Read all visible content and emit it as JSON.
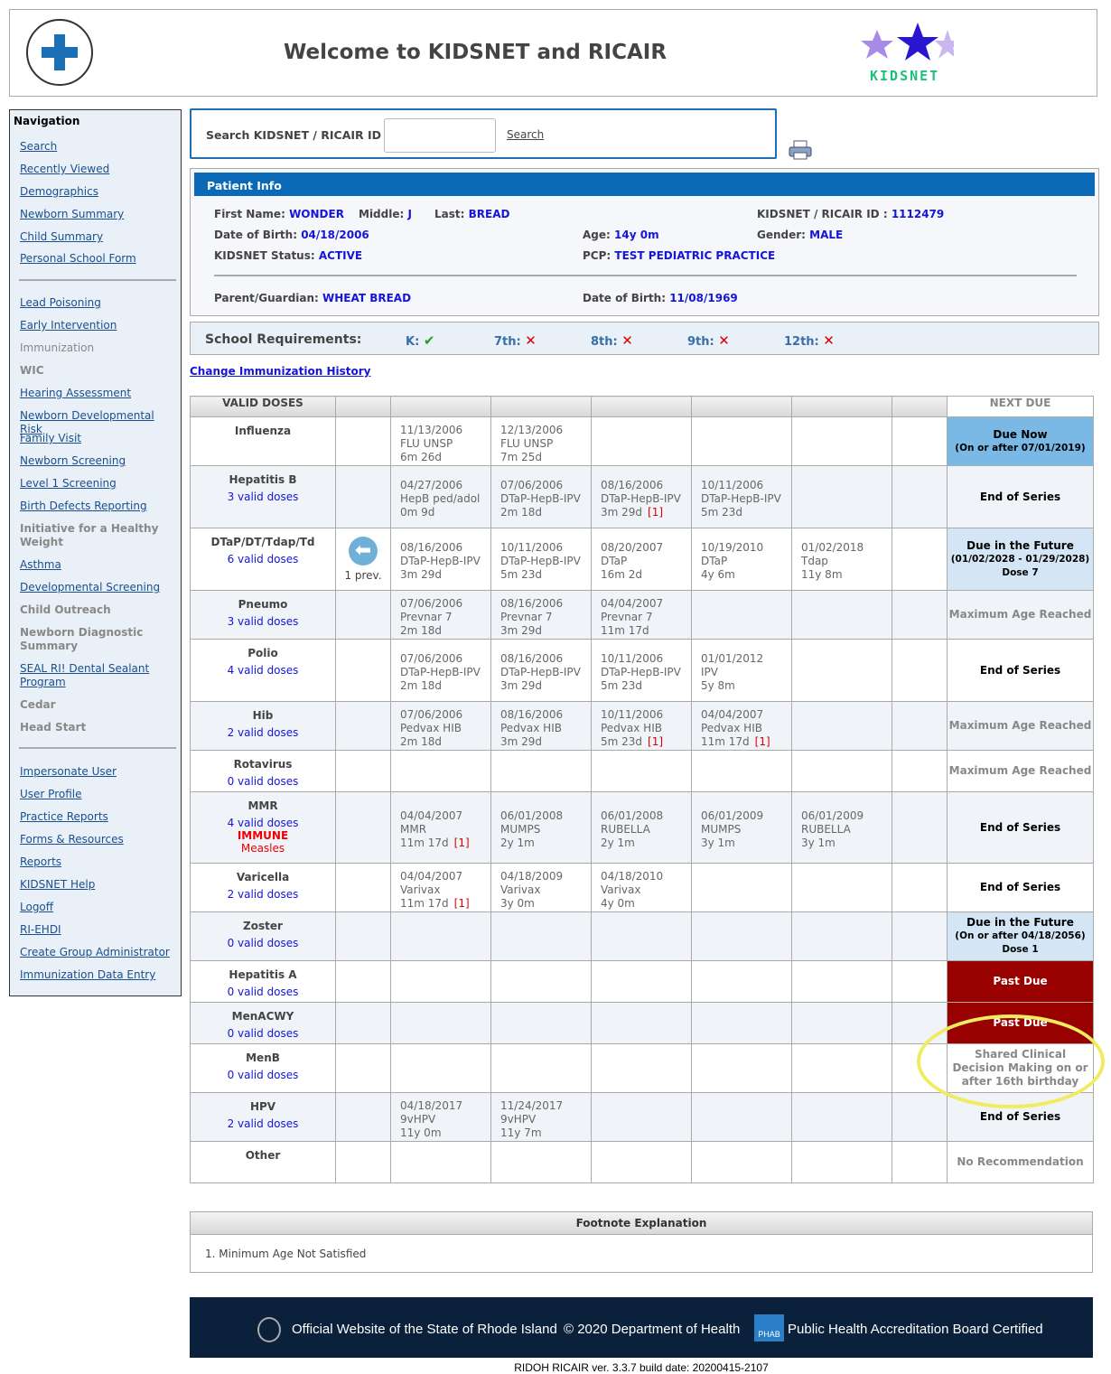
{
  "header": {
    "title": "Welcome to KIDSNET and RICAIR",
    "logo_left": "Rhode Island Department of Health",
    "logo_right": "KIDSNET"
  },
  "nav": {
    "title": "Navigation",
    "items": [
      {
        "label": "Search",
        "type": "link"
      },
      {
        "label": "Recently Viewed",
        "type": "link"
      },
      {
        "label": "Demographics",
        "type": "link"
      },
      {
        "label": "Newborn Summary",
        "type": "link"
      },
      {
        "label": "Child Summary",
        "type": "link"
      },
      {
        "label": "Personal School Form",
        "type": "link"
      },
      {
        "label": "Lead Poisoning",
        "type": "link"
      },
      {
        "label": "Early Intervention",
        "type": "link"
      },
      {
        "label": "Immunization",
        "type": "plain"
      },
      {
        "label": "WIC",
        "type": "bold"
      },
      {
        "label": "Hearing Assessment",
        "type": "link"
      },
      {
        "label": "Newborn Developmental Risk",
        "type": "link"
      },
      {
        "label": "Family Visit",
        "type": "link"
      },
      {
        "label": "Newborn Screening",
        "type": "link"
      },
      {
        "label": "Level 1 Screening",
        "type": "link"
      },
      {
        "label": "Birth Defects Reporting",
        "type": "link"
      },
      {
        "label": "Initiative for a Healthy Weight",
        "type": "bold"
      },
      {
        "label": "Asthma",
        "type": "link"
      },
      {
        "label": "Developmental Screening",
        "type": "link"
      },
      {
        "label": "Child Outreach",
        "type": "bold"
      },
      {
        "label": "Newborn Diagnostic Summary",
        "type": "bold"
      },
      {
        "label": "SEAL RI! Dental Sealant Program",
        "type": "link"
      },
      {
        "label": "Cedar",
        "type": "bold"
      },
      {
        "label": "Head Start",
        "type": "bold"
      },
      {
        "label": "Impersonate User",
        "type": "link"
      },
      {
        "label": "User Profile",
        "type": "link"
      },
      {
        "label": "Practice Reports",
        "type": "link"
      },
      {
        "label": "Forms & Resources",
        "type": "link"
      },
      {
        "label": "Reports",
        "type": "link"
      },
      {
        "label": "KIDSNET Help",
        "type": "link"
      },
      {
        "label": "Logoff",
        "type": "link"
      },
      {
        "label": "RI-EHDI",
        "type": "link"
      },
      {
        "label": "Create Group Administrator",
        "type": "link"
      },
      {
        "label": "Immunization Data Entry",
        "type": "link"
      }
    ]
  },
  "search": {
    "label": "Search KIDSNET / RICAIR ID :",
    "value": "",
    "button": "Search"
  },
  "patient": {
    "title": "Patient Info",
    "first_label": "First Name:",
    "first": "WONDER",
    "middle_label": "Middle:",
    "middle": "J",
    "last_label": "Last:",
    "last": "BREAD",
    "id_label": "KIDSNET / RICAIR ID :",
    "id": "1112479",
    "dob_label": "Date of Birth:",
    "dob": "04/18/2006",
    "age_label": "Age:",
    "age": "14y 0m",
    "gender_label": "Gender:",
    "gender": "MALE",
    "status_label": "KIDSNET Status:",
    "status": "ACTIVE",
    "pcp_label": "PCP:",
    "pcp": "TEST PEDIATRIC PRACTICE",
    "guardian_label": "Parent/Guardian:",
    "guardian": "WHEAT BREAD",
    "gdob_label": "Date of Birth:",
    "gdob": "11/08/1969"
  },
  "school": {
    "title": "School Requirements:",
    "grades": [
      {
        "label": "K:",
        "met": true
      },
      {
        "label": "7th:",
        "met": false
      },
      {
        "label": "8th:",
        "met": false
      },
      {
        "label": "9th:",
        "met": false
      },
      {
        "label": "12th:",
        "met": false
      }
    ]
  },
  "change_link": "Change Immunization History",
  "table": {
    "header_valid": "VALID DOSES",
    "header_next": "NEXT DUE",
    "prev_label": "1 prev.",
    "rows": [
      {
        "name": "Influenza",
        "valid": "",
        "doses": [
          {
            "date": "11/13/2006",
            "vaccine": "FLU UNSP",
            "age": "6m 26d"
          },
          {
            "date": "12/13/2006",
            "vaccine": "FLU UNSP",
            "age": "7m 25d"
          }
        ],
        "next": {
          "label": "Due Now",
          "sub": "(On or after 07/01/2019)",
          "style": "now"
        }
      },
      {
        "name": "Hepatitis B",
        "valid": "3 valid doses",
        "doses": [
          {
            "date": "04/27/2006",
            "vaccine": "HepB ped/adol",
            "age": "0m 9d"
          },
          {
            "date": "07/06/2006",
            "vaccine": "DTaP-HepB-IPV",
            "age": "2m 18d"
          },
          {
            "date": "08/16/2006",
            "vaccine": "DTaP-HepB-IPV",
            "age": "3m 29d",
            "note": "[1]"
          },
          {
            "date": "10/11/2006",
            "vaccine": "DTaP-HepB-IPV",
            "age": "5m 23d"
          }
        ],
        "next": {
          "label": "End of Series",
          "style": "end"
        }
      },
      {
        "name": "DTaP/DT/Tdap/Td",
        "valid": "6 valid doses",
        "prev": true,
        "doses": [
          {
            "date": "08/16/2006",
            "vaccine": "DTaP-HepB-IPV",
            "age": "3m 29d"
          },
          {
            "date": "10/11/2006",
            "vaccine": "DTaP-HepB-IPV",
            "age": "5m 23d"
          },
          {
            "date": "08/20/2007",
            "vaccine": "DTaP",
            "age": "16m 2d"
          },
          {
            "date": "10/19/2010",
            "vaccine": "DTaP",
            "age": "4y 6m"
          },
          {
            "date": "01/02/2018",
            "vaccine": "Tdap",
            "age": "11y 8m"
          }
        ],
        "next": {
          "label": "Due in the Future",
          "sub": "(01/02/2028 - 01/29/2028)",
          "dose": "Dose 7",
          "style": "future"
        }
      },
      {
        "name": "Pneumo",
        "valid": "3 valid doses",
        "doses": [
          {
            "date": "07/06/2006",
            "vaccine": "Prevnar 7",
            "age": "2m 18d"
          },
          {
            "date": "08/16/2006",
            "vaccine": "Prevnar 7",
            "age": "3m 29d"
          },
          {
            "date": "04/04/2007",
            "vaccine": "Prevnar 7",
            "age": "11m 17d"
          }
        ],
        "next": {
          "label": "Maximum Age Reached",
          "style": "gray"
        }
      },
      {
        "name": "Polio",
        "valid": "4 valid doses",
        "doses": [
          {
            "date": "07/06/2006",
            "vaccine": "DTaP-HepB-IPV",
            "age": "2m 18d"
          },
          {
            "date": "08/16/2006",
            "vaccine": "DTaP-HepB-IPV",
            "age": "3m 29d"
          },
          {
            "date": "10/11/2006",
            "vaccine": "DTaP-HepB-IPV",
            "age": "5m 23d"
          },
          {
            "date": "01/01/2012",
            "vaccine": "IPV",
            "age": "5y 8m"
          }
        ],
        "next": {
          "label": "End of Series",
          "style": "end"
        }
      },
      {
        "name": "Hib",
        "valid": "2 valid doses",
        "doses": [
          {
            "date": "07/06/2006",
            "vaccine": "Pedvax HIB",
            "age": "2m 18d"
          },
          {
            "date": "08/16/2006",
            "vaccine": "Pedvax HIB",
            "age": "3m 29d"
          },
          {
            "date": "10/11/2006",
            "vaccine": "Pedvax HIB",
            "age": "5m 23d",
            "note": "[1]"
          },
          {
            "date": "04/04/2007",
            "vaccine": "Pedvax HIB",
            "age": "11m 17d",
            "note": "[1]"
          }
        ],
        "next": {
          "label": "Maximum Age Reached",
          "style": "gray"
        }
      },
      {
        "name": "Rotavirus",
        "valid": "0 valid doses",
        "doses": [],
        "next": {
          "label": "Maximum Age Reached",
          "style": "gray"
        }
      },
      {
        "name": "MMR",
        "valid": "4 valid doses",
        "immune": "IMMUNE",
        "immune_sub": "Measles",
        "doses": [
          {
            "date": "04/04/2007",
            "vaccine": "MMR",
            "age": "11m 17d",
            "note": "[1]"
          },
          {
            "date": "06/01/2008",
            "vaccine": "MUMPS",
            "age": "2y 1m"
          },
          {
            "date": "06/01/2008",
            "vaccine": "RUBELLA",
            "age": "2y 1m"
          },
          {
            "date": "06/01/2009",
            "vaccine": "MUMPS",
            "age": "3y 1m"
          },
          {
            "date": "06/01/2009",
            "vaccine": "RUBELLA",
            "age": "3y 1m"
          }
        ],
        "next": {
          "label": "End of Series",
          "style": "end"
        }
      },
      {
        "name": "Varicella",
        "valid": "2 valid doses",
        "doses": [
          {
            "date": "04/04/2007",
            "vaccine": "Varivax",
            "age": "11m 17d",
            "note": "[1]"
          },
          {
            "date": "04/18/2009",
            "vaccine": "Varivax",
            "age": "3y 0m"
          },
          {
            "date": "04/18/2010",
            "vaccine": "Varivax",
            "age": "4y 0m"
          }
        ],
        "next": {
          "label": "End of Series",
          "style": "end"
        }
      },
      {
        "name": "Zoster",
        "valid": "0 valid doses",
        "doses": [],
        "next": {
          "label": "Due in the Future",
          "sub": "(On or after 04/18/2056)",
          "dose": "Dose 1",
          "style": "future"
        }
      },
      {
        "name": "Hepatitis A",
        "valid": "0 valid doses",
        "doses": [],
        "next": {
          "label": "Past Due",
          "style": "past"
        }
      },
      {
        "name": "MenACWY",
        "valid": "0 valid doses",
        "doses": [],
        "next": {
          "label": "Past Due",
          "style": "past"
        }
      },
      {
        "name": "MenB",
        "valid": "0 valid doses",
        "doses": [],
        "next": {
          "label": "Shared Clinical Decision Making on or after 16th birthday",
          "style": "gray"
        }
      },
      {
        "name": "HPV",
        "valid": "2 valid doses",
        "doses": [
          {
            "date": "04/18/2017",
            "vaccine": "9vHPV",
            "age": "11y 0m"
          },
          {
            "date": "11/24/2017",
            "vaccine": "9vHPV",
            "age": "11y 7m"
          }
        ],
        "next": {
          "label": "End of Series",
          "style": "end"
        }
      },
      {
        "name": "Other",
        "valid": "",
        "doses": [],
        "next": {
          "label": "No Recommendation",
          "style": "gray"
        }
      }
    ]
  },
  "footnotes": {
    "title": "Footnote Explanation",
    "items": [
      "1. Minimum Age Not Satisfied"
    ]
  },
  "footer": {
    "state": "Official Website of the State of Rhode Island",
    "copyright": "© 2020 Department of Health",
    "phab_logo": "PHAB",
    "phab": "Public Health Accreditation Board Certified",
    "version": "RIDOH RICAIR  ver. 3.3.7  build date: 20200415-2107"
  },
  "colors": {
    "accent": "#0a6ab8",
    "due_now": "#7ab8e6",
    "due_future": "#d4e6f6",
    "past_due": "#990000",
    "footer": "#0b213b"
  }
}
